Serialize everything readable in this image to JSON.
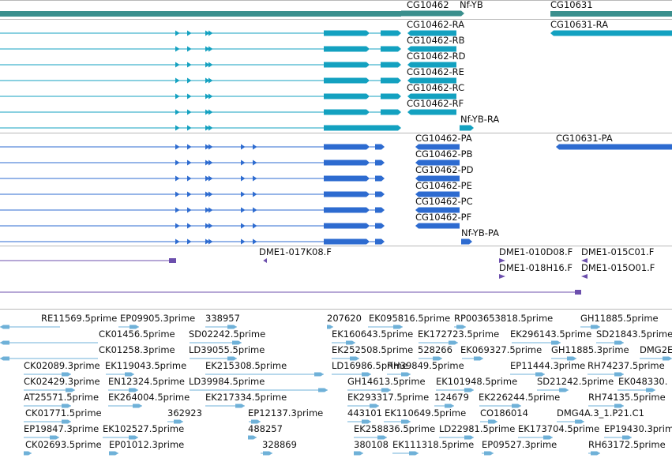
{
  "colors": {
    "gene": "#3a8f8d",
    "transcript": "#13a1c0",
    "protein": "#2d6bd0",
    "clone": "#6c4fad",
    "est": "#6fb1d8",
    "separator": "#b9b9b9"
  },
  "tracks": {
    "genes": [
      "CG10462",
      "Nf-YB",
      "CG10631"
    ],
    "transcripts": [
      "CG10462-RA",
      "CG10631-RA",
      "CG10462-RB",
      "CG10462-RD",
      "CG10462-RE",
      "CG10462-RC",
      "CG10462-RF",
      "Nf-YB-RA"
    ],
    "proteins": [
      "CG10462-PA",
      "CG10631-PA",
      "CG10462-PB",
      "CG10462-PD",
      "CG10462-PE",
      "CG10462-PC",
      "CG10462-PF",
      "Nf-YB-PA"
    ],
    "clones": [
      "DME1-017K08.F",
      "DME1-010D08.F",
      "DME1-015C01.F",
      "DME1-018H16.F",
      "DME1-015O01.F"
    ],
    "ests": [
      "RE11569.5prime",
      "EP09905.3prime",
      "338957",
      "207620",
      "EK095816.5prime",
      "RP003653818.5prime",
      "GH11885.5prime",
      "CK01456.5prime",
      "SD02242.5prime",
      "EK160643.5prime",
      "EK172723.5prime",
      "EK296143.5prime",
      "SD21843.5prime",
      "CK01258.3prime",
      "LD39055.5prime",
      "EK252508.5prime",
      "528266",
      "EK069327.5prime",
      "GH11885.3prime",
      "DMG2E",
      "CK02089.3prime",
      "EK119043.5prime",
      "EK215308.5prime",
      "LD16986.5prime",
      "RH39849.5prime",
      "EP11444.3prime",
      "RH74237.5prime",
      "CK02429.3prime",
      "EN12324.5prime",
      "LD39984.5prime",
      "GH14613.5prime",
      "EK101948.5prime",
      "SD21242.5prime",
      "EK048330.",
      "AT25571.5prime",
      "EK264004.5prime",
      "EK217334.5prime",
      "EK293317.5prime",
      "124679",
      "EK226244.5prime",
      "RH74135.5prime",
      "CK01771.5prime",
      "362923",
      "EP12137.3prime",
      "443101",
      "EK110649.5prime",
      "CO186014",
      "DMG4A.3_1.P21.C1",
      "EP19847.3prime",
      "EK102527.5prime",
      "488257",
      "EK258836.5prime",
      "LD22981.5prime",
      "EK173704.5prime",
      "EP19430.3prim",
      "CK02693.5prime",
      "EP01012.3prime",
      "328869",
      "380108",
      "EK111318.5prime",
      "EP09527.3prime",
      "RH63172.5prime"
    ]
  }
}
